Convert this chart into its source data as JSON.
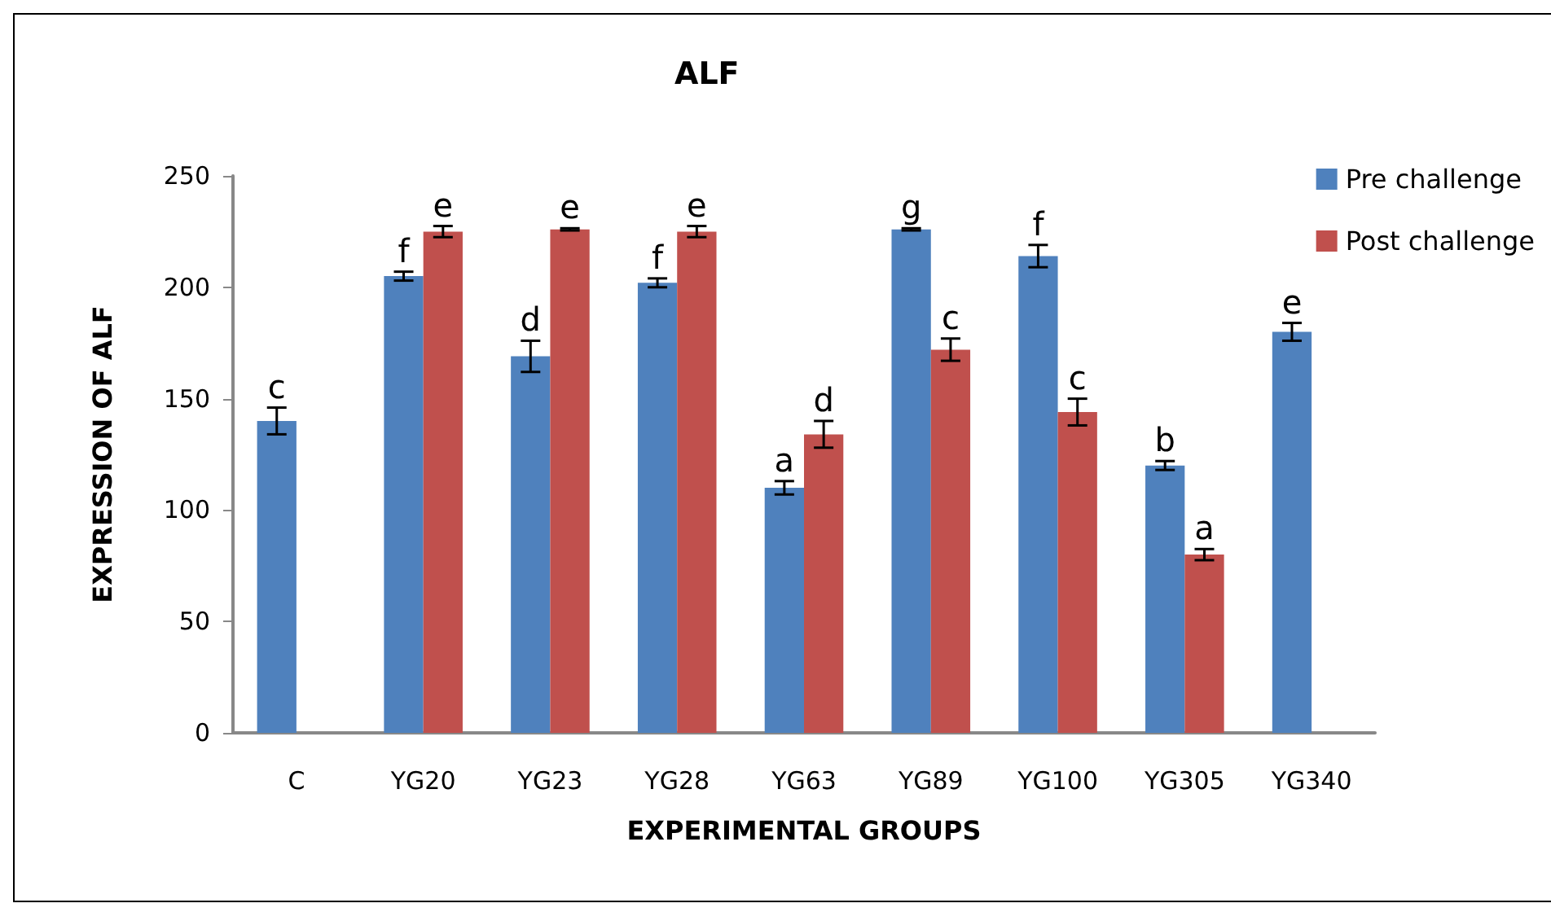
{
  "chart_data": {
    "type": "bar",
    "title": "ALF",
    "xlabel": "EXPERIMENTAL GROUPS",
    "ylabel": "EXPRESSION OF ALF",
    "categories": [
      "C",
      "YG20",
      "YG23",
      "YG28",
      "YG63",
      "YG89",
      "YG100",
      "YG305",
      "YG340"
    ],
    "series": [
      {
        "name": "Pre challenge",
        "color": "#4f81bd",
        "values": [
          140,
          205,
          169,
          202,
          110,
          226,
          214,
          120,
          180
        ],
        "errors": [
          6,
          2,
          7,
          2,
          3,
          0.5,
          5,
          2,
          4
        ],
        "value_labels": [
          "c",
          "f",
          "d",
          "f",
          "a",
          "g",
          "f",
          "b",
          "e"
        ]
      },
      {
        "name": "Post challenge",
        "color": "#c0504d",
        "values": [
          null,
          225,
          226,
          225,
          134,
          172,
          144,
          80,
          null
        ],
        "errors": [
          null,
          2.5,
          0.5,
          2.5,
          6,
          5,
          6,
          2.5,
          null
        ],
        "value_labels": [
          null,
          "e",
          "e",
          "e",
          "d",
          "c",
          "c",
          "a",
          null
        ]
      }
    ],
    "ylim": [
      0,
      250
    ],
    "yticks": [
      0,
      50,
      100,
      150,
      200,
      250
    ],
    "grid": false,
    "legend": "top right"
  }
}
